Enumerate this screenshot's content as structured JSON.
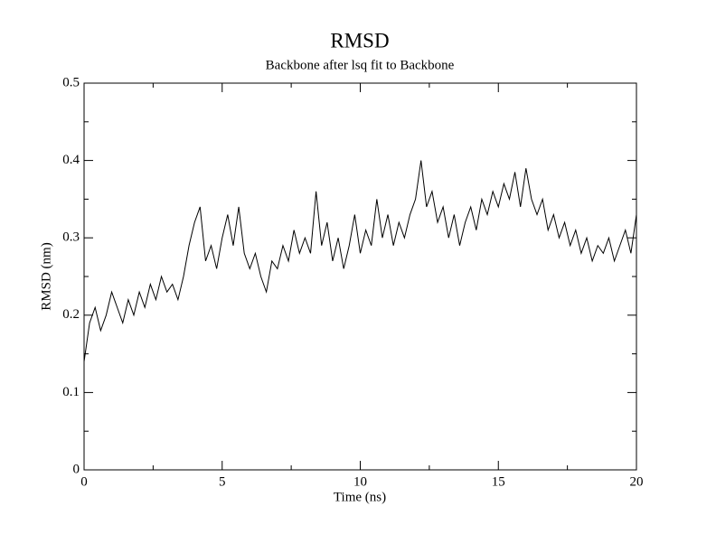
{
  "chart_data": {
    "type": "line",
    "title": "RMSD",
    "subtitle": "Backbone after lsq fit to Backbone",
    "xlabel": "Time (ns)",
    "ylabel": "RMSD (nm)",
    "x": [
      0,
      0.2,
      0.4,
      0.6,
      0.8,
      1,
      1.2,
      1.4,
      1.6,
      1.8,
      2,
      2.2,
      2.4,
      2.6,
      2.8,
      3,
      3.2,
      3.4,
      3.6,
      3.8,
      4,
      4.2,
      4.4,
      4.6,
      4.8,
      5,
      5.2,
      5.4,
      5.6,
      5.8,
      6,
      6.2,
      6.4,
      6.6,
      6.8,
      7,
      7.2,
      7.4,
      7.6,
      7.8,
      8,
      8.2,
      8.4,
      8.6,
      8.8,
      9,
      9.2,
      9.4,
      9.6,
      9.8,
      10,
      10.2,
      10.4,
      10.6,
      10.8,
      11,
      11.2,
      11.4,
      11.6,
      11.8,
      12,
      12.2,
      12.4,
      12.6,
      12.8,
      13,
      13.2,
      13.4,
      13.6,
      13.8,
      14,
      14.2,
      14.4,
      14.6,
      14.8,
      15,
      15.2,
      15.4,
      15.6,
      15.8,
      16,
      16.2,
      16.4,
      16.6,
      16.8,
      17,
      17.2,
      17.4,
      17.6,
      17.8,
      18,
      18.2,
      18.4,
      18.6,
      18.8,
      19,
      19.2,
      19.4,
      19.6,
      19.8,
      20
    ],
    "series": [
      {
        "color": "#000000",
        "values": [
          0.14,
          0.19,
          0.21,
          0.18,
          0.2,
          0.23,
          0.21,
          0.19,
          0.22,
          0.2,
          0.23,
          0.21,
          0.24,
          0.22,
          0.25,
          0.23,
          0.24,
          0.22,
          0.25,
          0.29,
          0.32,
          0.34,
          0.27,
          0.29,
          0.26,
          0.3,
          0.33,
          0.29,
          0.34,
          0.28,
          0.26,
          0.28,
          0.25,
          0.23,
          0.27,
          0.26,
          0.29,
          0.27,
          0.31,
          0.28,
          0.3,
          0.28,
          0.36,
          0.29,
          0.32,
          0.27,
          0.3,
          0.26,
          0.29,
          0.33,
          0.28,
          0.31,
          0.29,
          0.35,
          0.3,
          0.33,
          0.29,
          0.32,
          0.3,
          0.33,
          0.35,
          0.4,
          0.34,
          0.36,
          0.32,
          0.34,
          0.3,
          0.33,
          0.29,
          0.32,
          0.34,
          0.31,
          0.35,
          0.33,
          0.36,
          0.34,
          0.37,
          0.35,
          0.385,
          0.34,
          0.39,
          0.35,
          0.33,
          0.35,
          0.31,
          0.33,
          0.3,
          0.32,
          0.29,
          0.31,
          0.28,
          0.3,
          0.27,
          0.29,
          0.28,
          0.3,
          0.27,
          0.29,
          0.31,
          0.28,
          0.33
        ]
      }
    ],
    "xlim": [
      0,
      20
    ],
    "xticks": [
      0,
      5,
      10,
      15,
      20
    ],
    "xminorticks": [
      2.5,
      7.5,
      12.5,
      17.5
    ],
    "ylim": [
      0,
      0.5
    ],
    "yticks": [
      0,
      0.1,
      0.2,
      0.3,
      0.4,
      0.5
    ],
    "yminorticks": [
      0.05,
      0.15,
      0.25,
      0.35,
      0.45
    ]
  }
}
